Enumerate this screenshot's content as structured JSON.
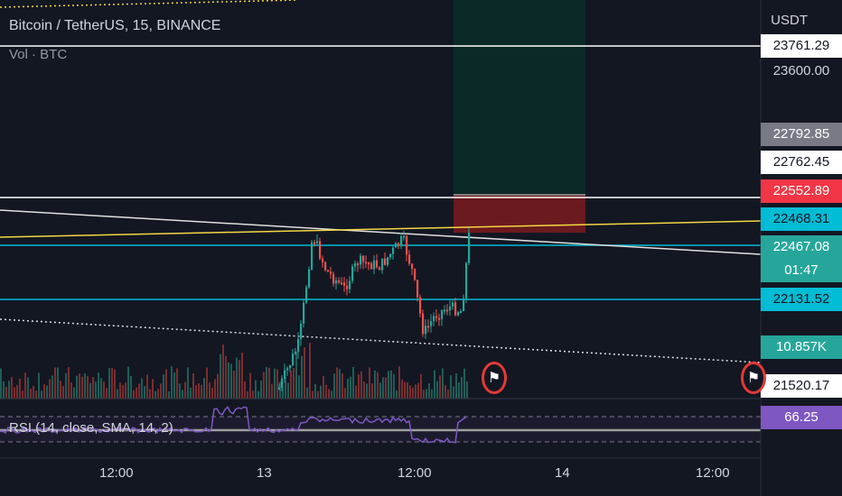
{
  "legend": {
    "title": "Bitcoin / TetherUS, 15, BINANCE",
    "volume": "Vol · BTC",
    "rsi": "RSI (14, close, SMA, 14, 2)"
  },
  "price_axis": {
    "currency": "USDT",
    "labels": [
      {
        "value": "23761.29",
        "style": "white-tag"
      },
      {
        "value": "23600.00",
        "style": "plain"
      },
      {
        "value": "22792.85",
        "style": "gray-tag"
      },
      {
        "value": "22762.45",
        "style": "white-tag"
      },
      {
        "value": "22552.89",
        "style": "red-tag"
      },
      {
        "value": "22468.31",
        "style": "cyan-tag"
      },
      {
        "value": "22467.08",
        "style": "teal-tag"
      },
      {
        "value": "01:47",
        "style": "teal-tag"
      },
      {
        "value": "22131.52",
        "style": "cyan-tag"
      },
      {
        "value": "10.857K",
        "style": "teal-tag"
      },
      {
        "value": "21520.17",
        "style": "white-tag"
      },
      {
        "value": "66.25",
        "style": "purple-tag"
      }
    ]
  },
  "time_axis": [
    "12:00",
    "13",
    "12:00",
    "14",
    "12:00"
  ],
  "colors": {
    "background": "#131722",
    "up": "#26a69a",
    "down": "#ef5350",
    "cyan_line": "#00bcd4",
    "yellow_line": "#f5d742",
    "rsi_line": "#7e57c2"
  },
  "chart_data": {
    "type": "candlestick",
    "symbol": "Bitcoin / TetherUS",
    "interval": "15",
    "exchange": "BINANCE",
    "horizontal_levels": [
      23761.29,
      22762.45,
      22468.31,
      22131.52
    ],
    "position_tool": {
      "stop_price": 22552.89,
      "entry_price": 22468.31
    },
    "current_price": 22467.08,
    "current_volume": "10.857K",
    "current_rsi": 66.25,
    "y_range": [
      21450,
      23900
    ]
  },
  "icons": {
    "event_flag_1": "us-flag-icon",
    "event_flag_2": "us-flag-icon"
  }
}
